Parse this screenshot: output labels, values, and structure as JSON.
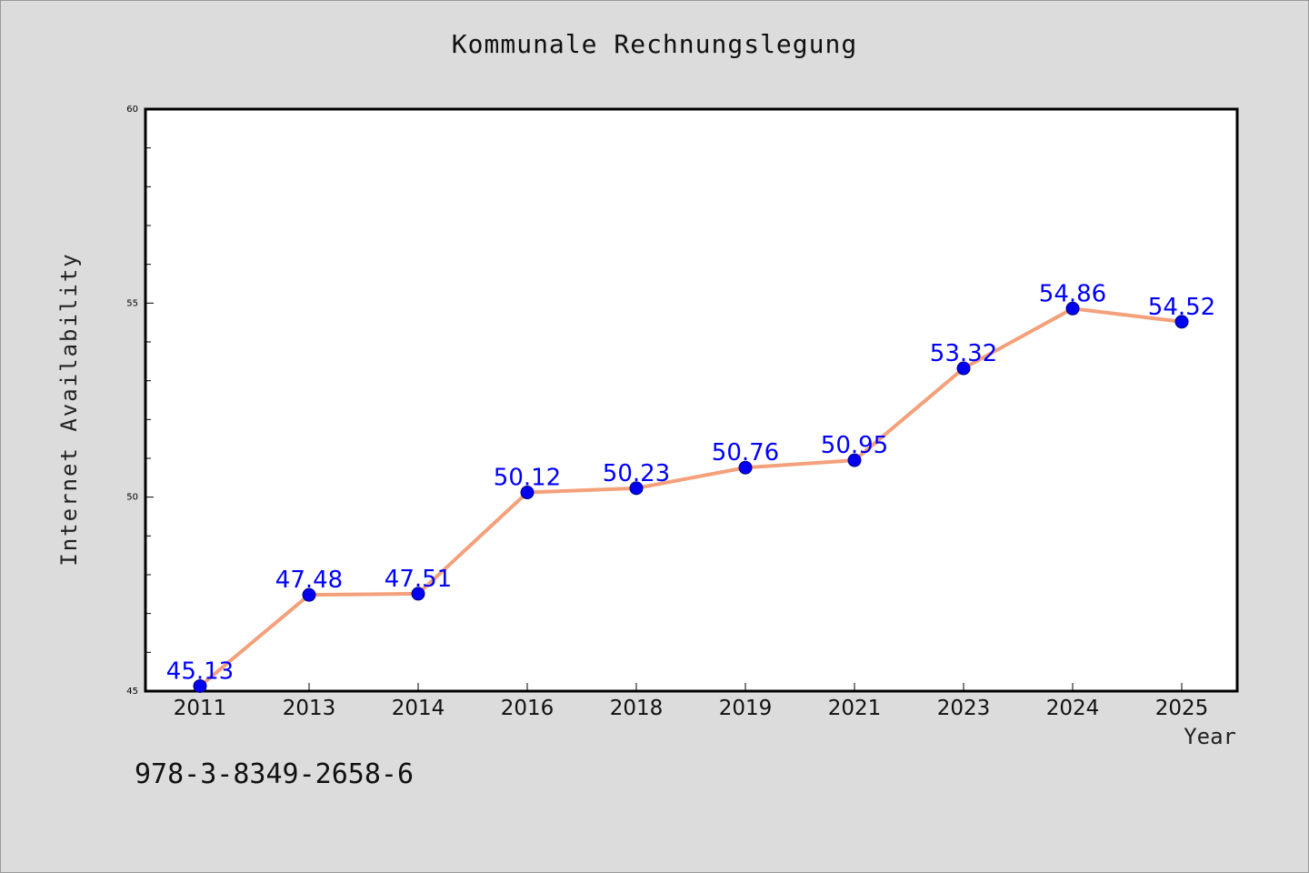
{
  "chart_data": {
    "type": "line",
    "title": "Kommunale Rechnungslegung",
    "xlabel": "Year",
    "ylabel": "Internet Availability",
    "categories": [
      "2011",
      "2013",
      "2014",
      "2016",
      "2018",
      "2019",
      "2021",
      "2023",
      "2024",
      "2025"
    ],
    "series": [
      {
        "values": [
          45.13,
          47.48,
          47.51,
          50.12,
          50.23,
          50.76,
          50.95,
          53.32,
          54.86,
          54.52
        ],
        "labels": [
          "45.13",
          "47.48",
          "47.51",
          "50.12",
          "50.23",
          "50.76",
          "50.95",
          "53.32",
          "54.86",
          "54.52"
        ],
        "line_color": "#f4a07a",
        "marker_color": "#0000ee",
        "label_color": "#0000ff"
      }
    ],
    "ylim": [
      45,
      60
    ],
    "yticks": [
      "45",
      "50",
      "55",
      "60"
    ],
    "grid": false,
    "legend": "none"
  },
  "footnote": "978-3-8349-2658-6"
}
